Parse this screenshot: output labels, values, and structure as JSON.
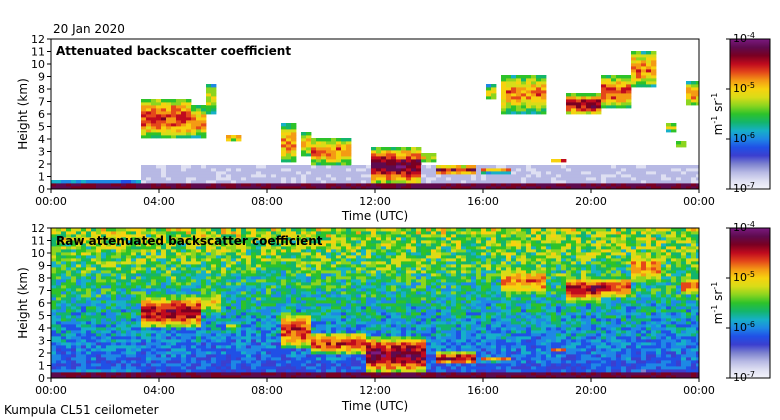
{
  "date": "20 Jan 2020",
  "footer": "Kumpula CL51 ceilometer",
  "colors": {
    "background": "#ffffff",
    "colormap": [
      "#f4f4fb",
      "#dedff2",
      "#b7b9e4",
      "#7d82cf",
      "#3b3fcf",
      "#2050e6",
      "#1e88e5",
      "#16b0c8",
      "#13b56c",
      "#2dc22a",
      "#8cd51f",
      "#d9dc18",
      "#f7d20f",
      "#f49b14",
      "#e4481a",
      "#c00b1e",
      "#7a0022",
      "#5e0a4e",
      "#7b1a80"
    ]
  },
  "chart_data": [
    {
      "type": "heatmap",
      "title": "Attenuated backscatter coefficient",
      "xlabel": "Time (UTC)",
      "ylabel": "Height (km)",
      "xlim_hours": [
        0,
        24
      ],
      "ylim_km": [
        0,
        12
      ],
      "x_ticks": [
        "00:00",
        "04:00",
        "08:00",
        "12:00",
        "16:00",
        "20:00",
        "00:00"
      ],
      "y_ticks": [
        "0",
        "1",
        "2",
        "3",
        "4",
        "5",
        "6",
        "7",
        "8",
        "9",
        "10",
        "11",
        "12"
      ],
      "colorbar": {
        "label_base": "m",
        "label_sup1": "-1",
        "label_mid": " sr",
        "label_sup2": "-1",
        "scale": "log",
        "range": [
          1e-07,
          0.0001
        ],
        "ticks": [
          {
            "base": "10",
            "exp": "-4",
            "value": 0.0001
          },
          {
            "base": "10",
            "exp": "-5",
            "value": 1e-05
          },
          {
            "base": "10",
            "exp": "-6",
            "value": 1e-06
          },
          {
            "base": "10",
            "exp": "-7",
            "value": 1e-07
          }
        ]
      },
      "features": [
        {
          "kind": "surface_layer",
          "t0": 0,
          "t1": 24,
          "h0": 0,
          "h1": 0.3,
          "level": 0.9
        },
        {
          "kind": "aerosol_layer",
          "t0": 0,
          "t1": 3.2,
          "h0": 0.2,
          "h1": 0.6,
          "level": 0.35
        },
        {
          "kind": "noise_band",
          "t0": 3.2,
          "t1": 24,
          "h0": 0.3,
          "h1": 1.7,
          "level": 0.12
        },
        {
          "kind": "cloud",
          "t0": 3.3,
          "t1": 5.0,
          "h0": 4.0,
          "h1": 7.2,
          "level": 0.75
        },
        {
          "kind": "cloud",
          "t0": 5.0,
          "t1": 5.6,
          "h0": 4.0,
          "h1": 6.5,
          "level": 0.7
        },
        {
          "kind": "cloud",
          "t0": 5.6,
          "t1": 6.1,
          "h0": 5.8,
          "h1": 8.3,
          "level": 0.6
        },
        {
          "kind": "cloud",
          "t0": 6.3,
          "t1": 6.9,
          "h0": 3.7,
          "h1": 4.3,
          "level": 0.65
        },
        {
          "kind": "cloud",
          "t0": 8.5,
          "t1": 9.0,
          "h0": 2.0,
          "h1": 5.2,
          "level": 0.7
        },
        {
          "kind": "cloud",
          "t0": 9.2,
          "t1": 9.6,
          "h0": 2.5,
          "h1": 4.5,
          "level": 0.65
        },
        {
          "kind": "cloud",
          "t0": 9.6,
          "t1": 11.0,
          "h0": 1.8,
          "h1": 4.0,
          "level": 0.7
        },
        {
          "kind": "cloud",
          "t0": 11.7,
          "t1": 13.7,
          "h0": 0.3,
          "h1": 3.2,
          "level": 0.85
        },
        {
          "kind": "cloud",
          "t0": 13.7,
          "t1": 14.2,
          "h0": 2.0,
          "h1": 2.8,
          "level": 0.6
        },
        {
          "kind": "cloud",
          "t0": 14.2,
          "t1": 15.7,
          "h0": 1.0,
          "h1": 1.8,
          "level": 0.8
        },
        {
          "kind": "cloud",
          "t0": 15.8,
          "t1": 17.0,
          "h0": 1.2,
          "h1": 1.6,
          "level": 0.7
        },
        {
          "kind": "cloud",
          "t0": 16.0,
          "t1": 16.3,
          "h0": 7.0,
          "h1": 8.2,
          "level": 0.6
        },
        {
          "kind": "cloud",
          "t0": 16.6,
          "t1": 18.2,
          "h0": 6.0,
          "h1": 9.0,
          "level": 0.7
        },
        {
          "kind": "cloud",
          "t0": 18.4,
          "t1": 19.0,
          "h0": 2.0,
          "h1": 2.4,
          "level": 0.7
        },
        {
          "kind": "cloud",
          "t0": 19.0,
          "t1": 20.3,
          "h0": 5.8,
          "h1": 7.5,
          "level": 0.8
        },
        {
          "kind": "cloud",
          "t0": 20.3,
          "t1": 21.3,
          "h0": 6.3,
          "h1": 9.0,
          "level": 0.75
        },
        {
          "kind": "cloud",
          "t0": 21.3,
          "t1": 22.3,
          "h0": 8.0,
          "h1": 11.0,
          "level": 0.7
        },
        {
          "kind": "cloud",
          "t0": 22.6,
          "t1": 23.0,
          "h0": 4.5,
          "h1": 5.2,
          "level": 0.6
        },
        {
          "kind": "cloud",
          "t0": 23.0,
          "t1": 23.4,
          "h0": 3.2,
          "h1": 3.8,
          "level": 0.6
        },
        {
          "kind": "cloud",
          "t0": 23.4,
          "t1": 24.0,
          "h0": 6.5,
          "h1": 8.5,
          "level": 0.7
        }
      ]
    },
    {
      "type": "heatmap",
      "title": "Raw attenuated backscatter coefficient",
      "xlabel": "Time (UTC)",
      "ylabel": "Height (km)",
      "xlim_hours": [
        0,
        24
      ],
      "ylim_km": [
        0,
        12
      ],
      "x_ticks": [
        "00:00",
        "04:00",
        "08:00",
        "12:00",
        "16:00",
        "20:00",
        "00:00"
      ],
      "y_ticks": [
        "0",
        "1",
        "2",
        "3",
        "4",
        "5",
        "6",
        "7",
        "8",
        "9",
        "10",
        "11",
        "12"
      ],
      "colorbar": {
        "label_base": "m",
        "label_sup1": "-1",
        "label_mid": " sr",
        "label_sup2": "-1",
        "scale": "log",
        "range": [
          1e-07,
          0.0001
        ],
        "ticks": [
          {
            "base": "10",
            "exp": "-4",
            "value": 0.0001
          },
          {
            "base": "10",
            "exp": "-5",
            "value": 1e-05
          },
          {
            "base": "10",
            "exp": "-6",
            "value": 1e-06
          },
          {
            "base": "10",
            "exp": "-7",
            "value": 1e-07
          }
        ]
      },
      "features": [
        {
          "kind": "surface_layer",
          "t0": 0,
          "t1": 24,
          "h0": 0,
          "h1": 0.3,
          "level": 0.9
        },
        {
          "kind": "aerosol_layer",
          "t0": 0,
          "t1": 3.2,
          "h0": 0.2,
          "h1": 0.6,
          "level": 0.35
        },
        {
          "kind": "noise_band",
          "t0": 0,
          "t1": 24,
          "h0": 0.3,
          "h1": 12,
          "level": 0.5
        },
        {
          "kind": "cloud",
          "t0": 3.3,
          "t1": 5.5,
          "h0": 3.9,
          "h1": 6.5,
          "level": 0.8
        },
        {
          "kind": "cloud",
          "t0": 5.5,
          "t1": 6.2,
          "h0": 5.0,
          "h1": 7.0,
          "level": 0.6
        },
        {
          "kind": "cloud",
          "t0": 6.3,
          "t1": 7.0,
          "h0": 3.8,
          "h1": 4.2,
          "level": 0.6
        },
        {
          "kind": "cloud",
          "t0": 8.5,
          "t1": 9.6,
          "h0": 2.2,
          "h1": 5.2,
          "level": 0.75
        },
        {
          "kind": "cloud",
          "t0": 9.6,
          "t1": 11.5,
          "h0": 1.8,
          "h1": 3.6,
          "level": 0.75
        },
        {
          "kind": "cloud",
          "t0": 11.5,
          "t1": 13.8,
          "h0": 0.3,
          "h1": 3.2,
          "level": 0.85
        },
        {
          "kind": "cloud",
          "t0": 14.2,
          "t1": 15.7,
          "h0": 1.0,
          "h1": 2.0,
          "level": 0.8
        },
        {
          "kind": "cloud",
          "t0": 15.8,
          "t1": 17.0,
          "h0": 1.2,
          "h1": 1.6,
          "level": 0.7
        },
        {
          "kind": "cloud",
          "t0": 16.6,
          "t1": 18.2,
          "h0": 6.5,
          "h1": 8.8,
          "level": 0.7
        },
        {
          "kind": "cloud",
          "t0": 18.4,
          "t1": 19.0,
          "h0": 2.0,
          "h1": 2.4,
          "level": 0.7
        },
        {
          "kind": "cloud",
          "t0": 19.0,
          "t1": 20.3,
          "h0": 6.0,
          "h1": 8.0,
          "level": 0.8
        },
        {
          "kind": "cloud",
          "t0": 20.3,
          "t1": 21.3,
          "h0": 6.3,
          "h1": 8.0,
          "level": 0.75
        },
        {
          "kind": "cloud",
          "t0": 21.3,
          "t1": 22.5,
          "h0": 7.5,
          "h1": 10.0,
          "level": 0.7
        },
        {
          "kind": "cloud",
          "t0": 23.3,
          "t1": 24.0,
          "h0": 6.5,
          "h1": 8.0,
          "level": 0.7
        }
      ]
    }
  ]
}
